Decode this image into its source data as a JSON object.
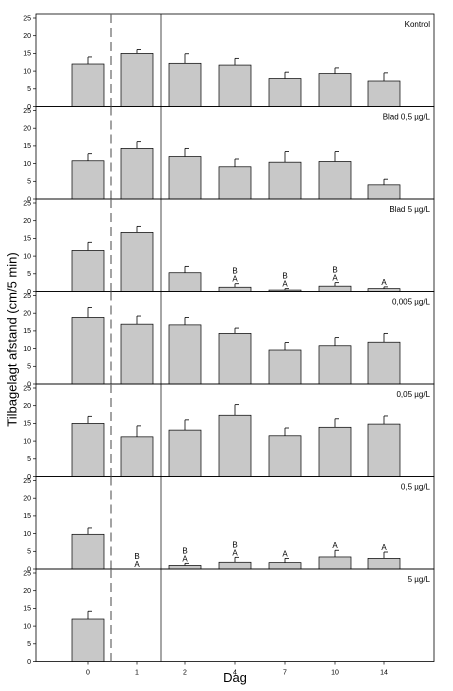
{
  "chart_data": {
    "type": "bar",
    "ylabel": "Tilbagelagt afstand (cm/5 min)",
    "xlabel": "Dag",
    "categories": [
      "0",
      "1",
      "2",
      "4",
      "7",
      "10",
      "14"
    ],
    "ylim": [
      0,
      25
    ],
    "yticks": [
      0,
      5,
      10,
      15,
      20,
      25
    ],
    "bar_color": "#c8c8c8",
    "dashed_after_category": "0",
    "solid_after_category": "1",
    "panels": [
      {
        "label": "Kontrol",
        "values": [
          12,
          15,
          12.2,
          11.7,
          7.9,
          9.3,
          7.2
        ],
        "errors": [
          2.0,
          1.1,
          2.7,
          1.9,
          1.8,
          1.6,
          2.3
        ],
        "annotations": [
          "",
          "",
          "",
          "",
          "",
          "",
          ""
        ]
      },
      {
        "label": "Blad 0,5 µg/L",
        "values": [
          10.8,
          14.3,
          12,
          9.1,
          10.4,
          10.6,
          4
        ],
        "errors": [
          2.0,
          1.9,
          2.3,
          2.2,
          3.0,
          2.8,
          1.6
        ],
        "annotations": [
          "",
          "",
          "",
          "",
          "",
          "",
          ""
        ]
      },
      {
        "label": "Blad 5 µg/L",
        "values": [
          11.6,
          16.7,
          5.3,
          1.2,
          0.4,
          1.5,
          0.8
        ],
        "errors": [
          2.3,
          1.7,
          1.8,
          1.0,
          0.4,
          1.0,
          0.5
        ],
        "annotations": [
          "",
          "",
          "",
          "B\nA",
          "B\nA",
          "B\nA",
          "A"
        ]
      },
      {
        "label": "0,005 µg/L",
        "values": [
          18.8,
          16.9,
          16.7,
          14.3,
          9.6,
          10.8,
          11.8
        ],
        "errors": [
          2.8,
          2.3,
          2.1,
          1.5,
          2.1,
          2.3,
          2.5
        ],
        "annotations": [
          "",
          "",
          "",
          "",
          "",
          "",
          ""
        ]
      },
      {
        "label": "0,05 µg/L",
        "values": [
          15,
          11.2,
          13.1,
          17.3,
          11.5,
          13.9,
          14.8
        ],
        "errors": [
          2.0,
          3.1,
          2.9,
          3.0,
          2.2,
          2.4,
          2.3
        ],
        "annotations": [
          "",
          "",
          "",
          "",
          "",
          "",
          ""
        ]
      },
      {
        "label": "0,5 µg/L",
        "values": [
          9.8,
          0,
          1,
          1.9,
          1.8,
          3.4,
          3
        ],
        "errors": [
          1.8,
          0,
          0.6,
          1.4,
          1.2,
          1.9,
          1.8
        ],
        "annotations": [
          "",
          "B\nA",
          "B\nA",
          "B\nA",
          "A",
          "A",
          "A"
        ]
      },
      {
        "label": "5 µg/L",
        "values": [
          12,
          null,
          null,
          null,
          null,
          null,
          null
        ],
        "errors": [
          2.2,
          null,
          null,
          null,
          null,
          null,
          null
        ],
        "annotations": [
          "",
          "",
          "",
          "",
          "",
          "",
          ""
        ]
      }
    ]
  }
}
